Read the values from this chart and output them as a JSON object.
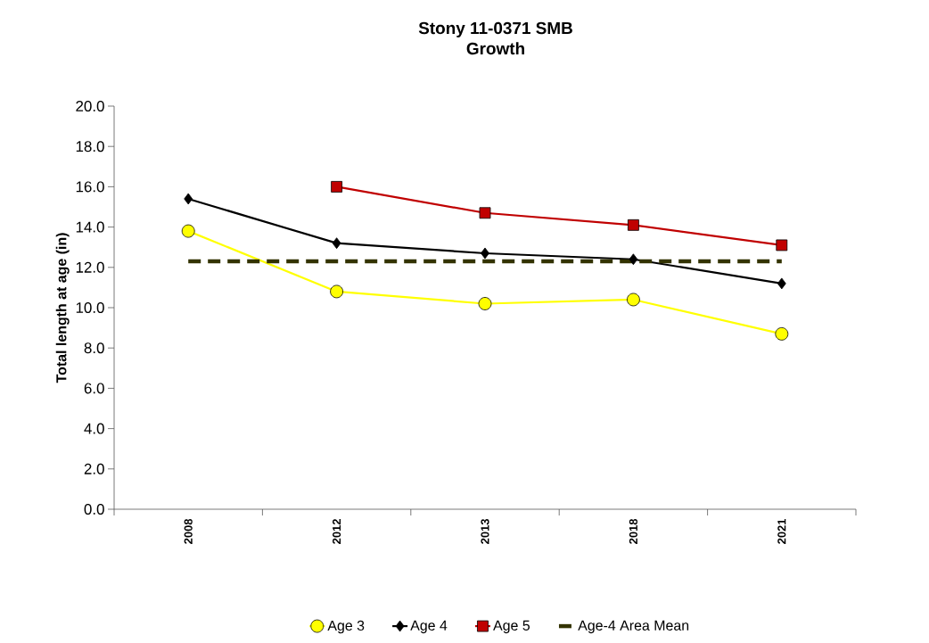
{
  "chart_data": {
    "type": "line",
    "title": "Stony 11-0371 SMB",
    "subtitle": "Growth",
    "ylabel": "Total length at age (in)",
    "categories": [
      "2008",
      "2012",
      "2013",
      "2018",
      "2021"
    ],
    "series": [
      {
        "name": "Age 3",
        "color": "#ffff00",
        "marker": "circle",
        "values": [
          13.8,
          10.8,
          10.2,
          10.4,
          8.7
        ]
      },
      {
        "name": "Age 4",
        "color": "#000000",
        "marker": "diamond",
        "values": [
          15.4,
          13.2,
          12.7,
          12.4,
          11.2
        ]
      },
      {
        "name": "Age 5",
        "color": "#c00000",
        "marker": "square",
        "values": [
          null,
          16.0,
          14.7,
          14.1,
          13.1
        ]
      },
      {
        "name": "Age-4 Area Mean",
        "color": "#333300",
        "marker": "none",
        "line_style": "dashed",
        "values": [
          12.3,
          12.3,
          12.3,
          12.3,
          12.3
        ]
      }
    ],
    "ylim": [
      0,
      20
    ],
    "yticks": [
      {
        "value": 0,
        "label": "0.0"
      },
      {
        "value": 2,
        "label": "2.0"
      },
      {
        "value": 4,
        "label": "4.0"
      },
      {
        "value": 6,
        "label": "6.0"
      },
      {
        "value": 8,
        "label": "8.0"
      },
      {
        "value": 10,
        "label": "10.0"
      },
      {
        "value": 12,
        "label": "12.0"
      },
      {
        "value": 14,
        "label": "14.0"
      },
      {
        "value": 16,
        "label": "16.0"
      },
      {
        "value": 18,
        "label": "18.0"
      },
      {
        "value": 20,
        "label": "20.0"
      }
    ],
    "legend": "bottom",
    "grid": false
  }
}
